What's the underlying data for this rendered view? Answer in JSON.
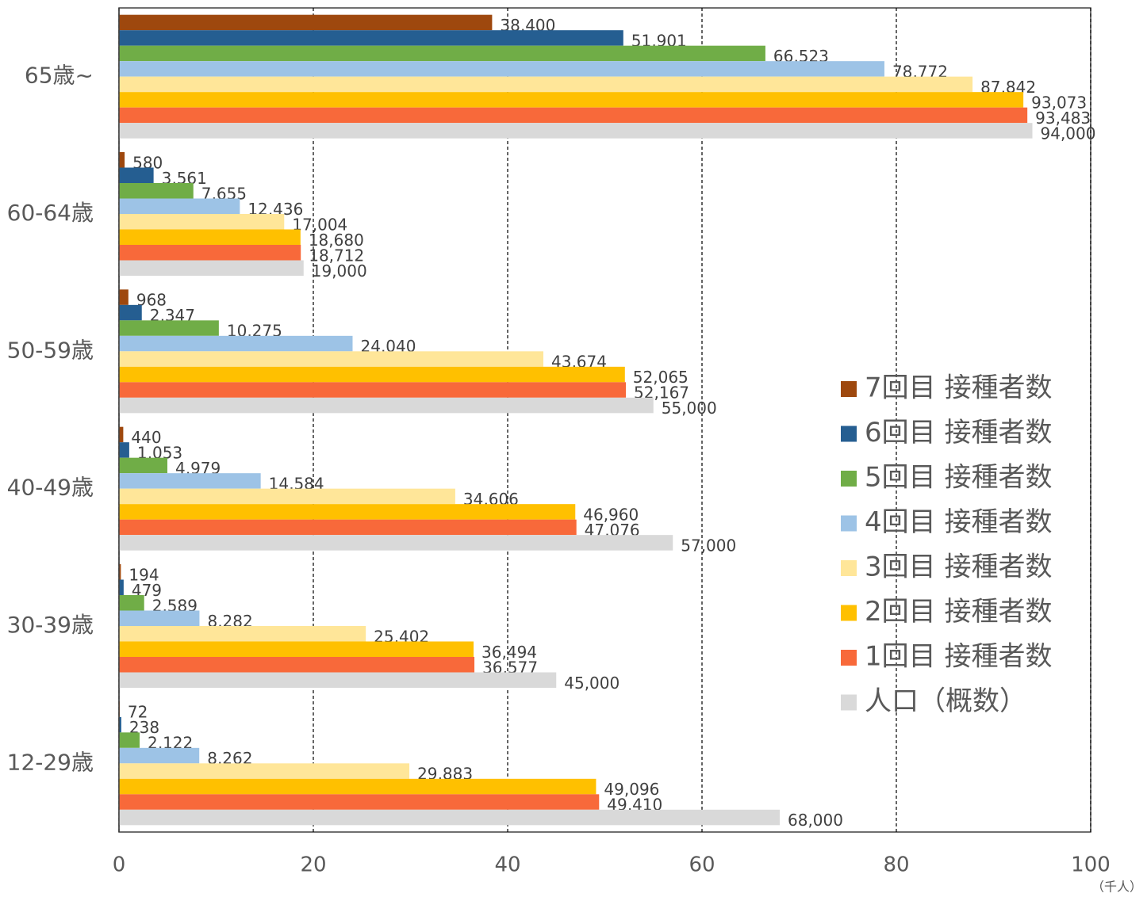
{
  "chart_data": {
    "type": "bar",
    "orientation": "horizontal",
    "x_label": "（千人）",
    "categories": [
      "65歳~",
      "60-64歳",
      "50-59歳",
      "40-49歳",
      "30-39歳",
      "12-29歳"
    ],
    "series": [
      {
        "name": "7回目 接種者数",
        "color": "#9e480e",
        "values": [
          38.4,
          0.58,
          0.968,
          0.44,
          0.194,
          0.072
        ],
        "value_labels": [
          "38,400",
          "580",
          "968",
          "440",
          "194",
          "72"
        ]
      },
      {
        "name": "6回目 接種者数",
        "color": "#255e91",
        "values": [
          51.901,
          3.561,
          2.347,
          1.053,
          0.479,
          0.238
        ],
        "value_labels": [
          "51,901",
          "3,561",
          "2,347",
          "1,053",
          "479",
          "238"
        ]
      },
      {
        "name": "5回目 接種者数",
        "color": "#70ad47",
        "values": [
          66.523,
          7.655,
          10.275,
          4.979,
          2.589,
          2.122
        ],
        "value_labels": [
          "66,523",
          "7,655",
          "10,275",
          "4,979",
          "2,589",
          "2,122"
        ]
      },
      {
        "name": "4回目 接種者数",
        "color": "#9dc3e6",
        "values": [
          78.772,
          12.436,
          24.04,
          14.584,
          8.282,
          8.262
        ],
        "value_labels": [
          "78,772",
          "12,436",
          "24,040",
          "14,584",
          "8,282",
          "8,262"
        ]
      },
      {
        "name": "3回目 接種者数",
        "color": "#ffe699",
        "values": [
          87.842,
          17.004,
          43.674,
          34.606,
          25.402,
          29.883
        ],
        "value_labels": [
          "87,842",
          "17,004",
          "43,674",
          "34,606",
          "25,402",
          "29,883"
        ]
      },
      {
        "name": "2回目 接種者数",
        "color": "#ffc000",
        "values": [
          93.073,
          18.68,
          52.065,
          46.96,
          36.494,
          49.096
        ],
        "value_labels": [
          "93,073",
          "18,680",
          "52,065",
          "46,960",
          "36,494",
          "49,096"
        ]
      },
      {
        "name": "1回目 接種者数",
        "color": "#f8693a",
        "values": [
          93.483,
          18.712,
          52.167,
          47.076,
          36.577,
          49.41
        ],
        "value_labels": [
          "93,483",
          "18,712",
          "52,167",
          "47,076",
          "36,577",
          "49,410"
        ]
      },
      {
        "name": "人口（概数）",
        "color": "#d9d9d9",
        "values": [
          94,
          19,
          55,
          57,
          45,
          68
        ],
        "value_labels": [
          "94,000",
          "19,000",
          "55,000",
          "57,000",
          "45,000",
          "68,000"
        ]
      }
    ],
    "xlim": [
      0,
      100
    ],
    "xticks": [
      0,
      20,
      40,
      60,
      80,
      100
    ],
    "grid": true,
    "legend": "right"
  }
}
